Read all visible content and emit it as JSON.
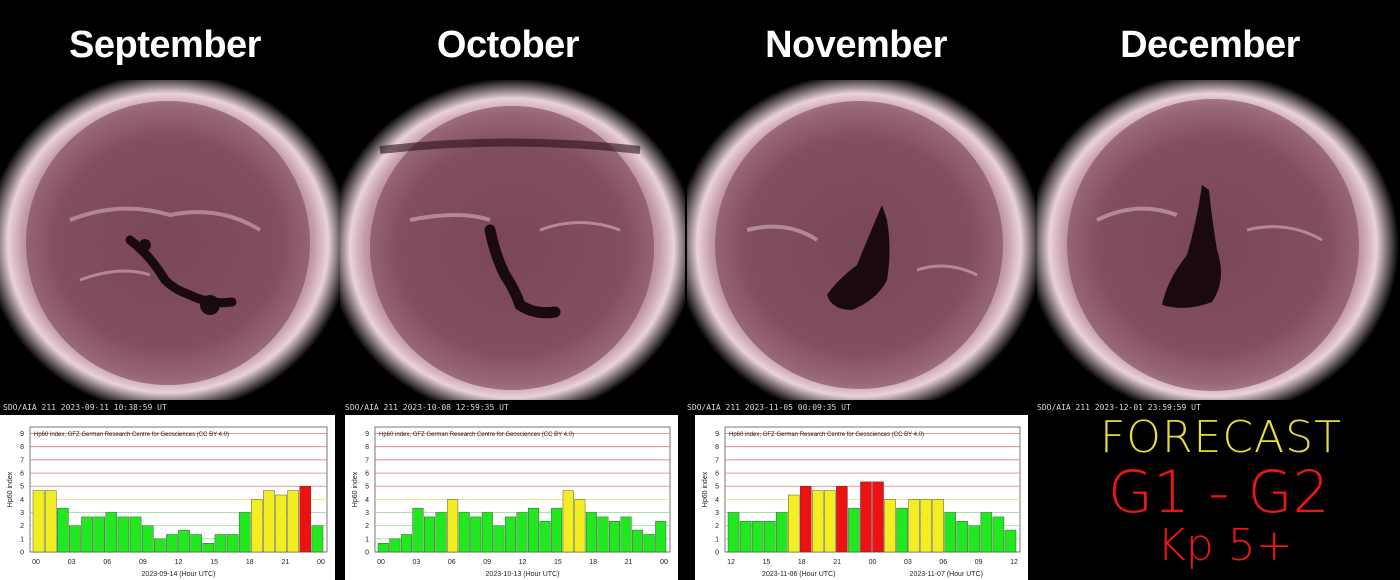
{
  "panels": [
    {
      "month": "September",
      "caption": "SDO/AIA  211   2023-09-11 10:38:59 UT",
      "chart": {
        "title": "Hp60 index, GFZ German Research Centre for Geosciences (CC BY 4.0)",
        "ylabel": "Hp60 index",
        "xlabel": "2023-09-14 (Hour UTC)",
        "xticks": [
          "00",
          "03",
          "06",
          "09",
          "12",
          "15",
          "18",
          "21",
          "00"
        ],
        "yticks": [
          "0",
          "1",
          "2",
          "3",
          "4",
          "5",
          "6",
          "7",
          "8",
          "9"
        ],
        "values": [
          4.667,
          4.667,
          3.333,
          2.0,
          2.667,
          2.667,
          3.0,
          2.667,
          2.667,
          2.0,
          1.0,
          1.333,
          1.667,
          1.333,
          0.667,
          1.333,
          1.333,
          3.0,
          4.0,
          4.667,
          4.333,
          4.667,
          5.0,
          2.0
        ]
      }
    },
    {
      "month": "October",
      "caption": "SDO/AIA  211   2023-10-08 12:59:35 UT",
      "chart": {
        "title": "Hp60 index, GFZ German Research Centre for Geosciences (CC BY 4.0)",
        "ylabel": "Hp60 index",
        "xlabel": "2023-10-13 (Hour UTC)",
        "xticks": [
          "00",
          "03",
          "06",
          "09",
          "12",
          "15",
          "18",
          "21",
          "00"
        ],
        "yticks": [
          "0",
          "1",
          "2",
          "3",
          "4",
          "5",
          "6",
          "7",
          "8",
          "9"
        ],
        "values": [
          0.667,
          1.0,
          1.333,
          3.333,
          2.667,
          3.0,
          4.0,
          3.0,
          2.667,
          3.0,
          2.0,
          2.667,
          3.0,
          3.333,
          2.333,
          3.333,
          4.667,
          4.0,
          3.0,
          2.667,
          2.333,
          2.667,
          1.667,
          1.333,
          2.333
        ]
      }
    },
    {
      "month": "November",
      "caption": "SDO/AIA  211   2023-11-05 00:09:35 UT",
      "chart": {
        "title": "Hp60 index, GFZ German Research Centre for Geosciences (CC BY 4.0)",
        "ylabel": "Hp60 index",
        "xlabel_left": "2023-11-06 (Hour UTC)",
        "xlabel_right": "2023-11-07 (Hour UTC)",
        "xticks": [
          "12",
          "15",
          "18",
          "21",
          "00",
          "03",
          "06",
          "09",
          "12"
        ],
        "yticks": [
          "0",
          "1",
          "2",
          "3",
          "4",
          "5",
          "6",
          "7",
          "8",
          "9"
        ],
        "values": [
          3.0,
          2.333,
          2.333,
          2.333,
          3.0,
          4.333,
          5.0,
          4.667,
          4.667,
          5.0,
          3.333,
          5.333,
          5.333,
          4.0,
          3.333,
          4.0,
          4.0,
          4.0,
          3.0,
          2.333,
          2.0,
          3.0,
          2.667,
          1.667
        ]
      }
    },
    {
      "month": "December",
      "caption": "SDO/AIA  211   2023-12-01 23:59:59 UT"
    }
  ],
  "forecast": {
    "title": "FORECAST",
    "level": "G1 - G2",
    "kp": "Kp 5+"
  },
  "colors": {
    "quiet": "#22e81f",
    "active": "#f2ee22",
    "storm": "#ee1111",
    "forecast_title": "#e8da3c",
    "forecast_level": "#e8170f",
    "sun_core": "#6a3a49",
    "sun_rim": "#e9cbd7"
  }
}
